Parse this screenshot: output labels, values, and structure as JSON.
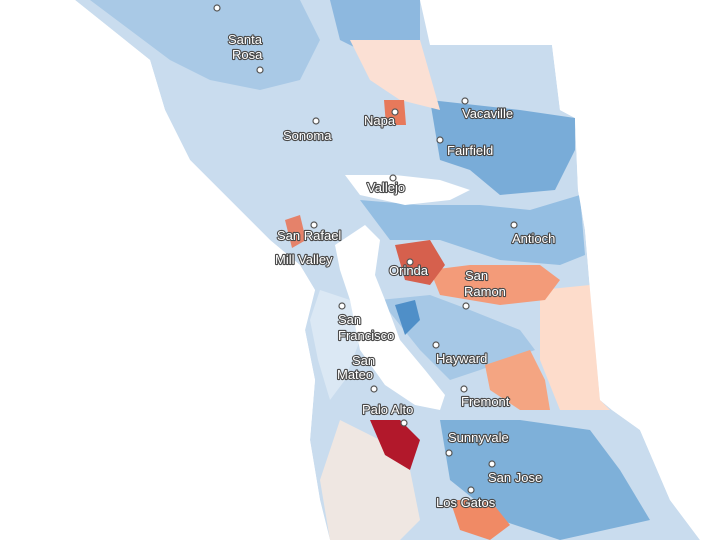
{
  "cities": [
    [
      "Santa",
      "Rosa"
    ],
    [
      "Vacaville"
    ],
    [
      "Napa"
    ],
    [
      "Sonoma"
    ],
    [
      "Fairfield"
    ],
    [
      "Vallejo"
    ],
    [
      "San Rafael"
    ],
    [
      "Antioch"
    ],
    [
      "Mill Valley"
    ],
    [
      "Orinda"
    ],
    [
      "San",
      "Ramon"
    ],
    [
      "San",
      "Francisco"
    ],
    [
      "Hayward"
    ],
    [
      "San",
      "Mateo"
    ],
    [
      "Fremont"
    ],
    [
      "Palo Alto"
    ],
    [
      "Sunnyvale"
    ],
    [
      "San Jose"
    ],
    [
      "Los Gatos"
    ]
  ]
}
